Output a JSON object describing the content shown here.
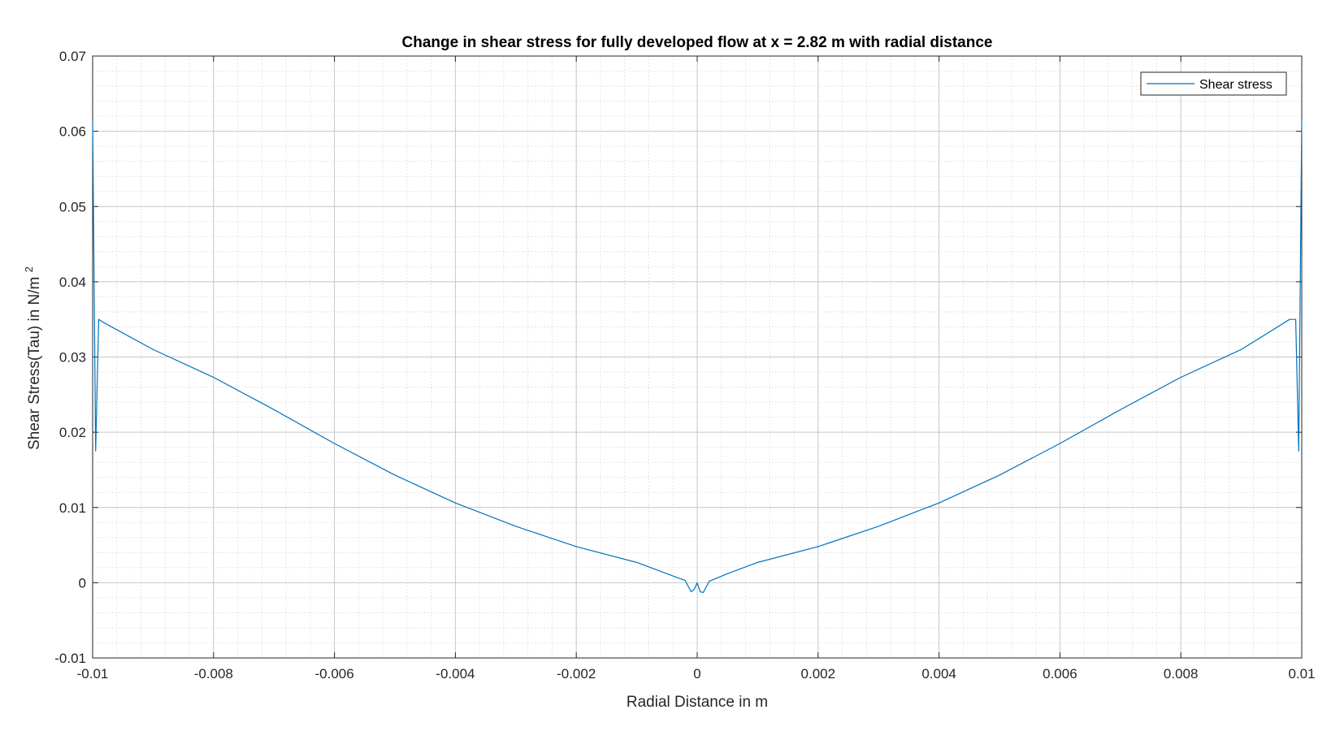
{
  "chart_data": {
    "type": "line",
    "title": "Change in shear stress for fully developed flow at x = 2.82 m with radial distance",
    "xlabel": "Radial Distance in m",
    "ylabel": "Shear Stress(Tau) in N/m",
    "ylabel_superscript": "2",
    "xlim": [
      -0.01,
      0.01
    ],
    "ylim": [
      -0.01,
      0.07
    ],
    "xticks": [
      -0.01,
      -0.008,
      -0.006,
      -0.004,
      -0.002,
      0,
      0.002,
      0.004,
      0.006,
      0.008,
      0.01
    ],
    "xtick_labels": [
      "-0.01",
      "-0.008",
      "-0.006",
      "-0.004",
      "-0.002",
      "0",
      "0.002",
      "0.004",
      "0.006",
      "0.008",
      "0.01"
    ],
    "yticks": [
      -0.01,
      0,
      0.01,
      0.02,
      0.03,
      0.04,
      0.05,
      0.06,
      0.07
    ],
    "ytick_labels": [
      "-0.01",
      "0",
      "0.01",
      "0.02",
      "0.03",
      "0.04",
      "0.05",
      "0.06",
      "0.07"
    ],
    "grid": true,
    "minor_grid": true,
    "legend_position": "top-right",
    "series": [
      {
        "name": "Shear stress",
        "color": "#0072bd",
        "x": [
          -0.01,
          -0.00995,
          -0.0099,
          -0.0098,
          -0.009,
          -0.008,
          -0.007,
          -0.006,
          -0.005,
          -0.004,
          -0.003,
          -0.002,
          -0.001,
          -0.0005,
          -0.0002,
          -0.0001,
          -5e-05,
          0,
          5e-05,
          0.0001,
          0.0002,
          0.0005,
          0.001,
          0.002,
          0.003,
          0.004,
          0.005,
          0.006,
          0.007,
          0.008,
          0.009,
          0.0098,
          0.0099,
          0.00995,
          0.01
        ],
        "y": [
          0.0615,
          0.0175,
          0.035,
          0.0345,
          0.031,
          0.0273,
          0.023,
          0.0185,
          0.0143,
          0.0106,
          0.0075,
          0.0048,
          0.0027,
          0.0012,
          0.0003,
          -0.0012,
          -0.0009,
          0,
          -0.0012,
          -0.0013,
          0.0002,
          0.0012,
          0.0027,
          0.0048,
          0.0075,
          0.0106,
          0.0143,
          0.0185,
          0.023,
          0.0273,
          0.031,
          0.035,
          0.035,
          0.0175,
          0.0615
        ]
      }
    ]
  }
}
